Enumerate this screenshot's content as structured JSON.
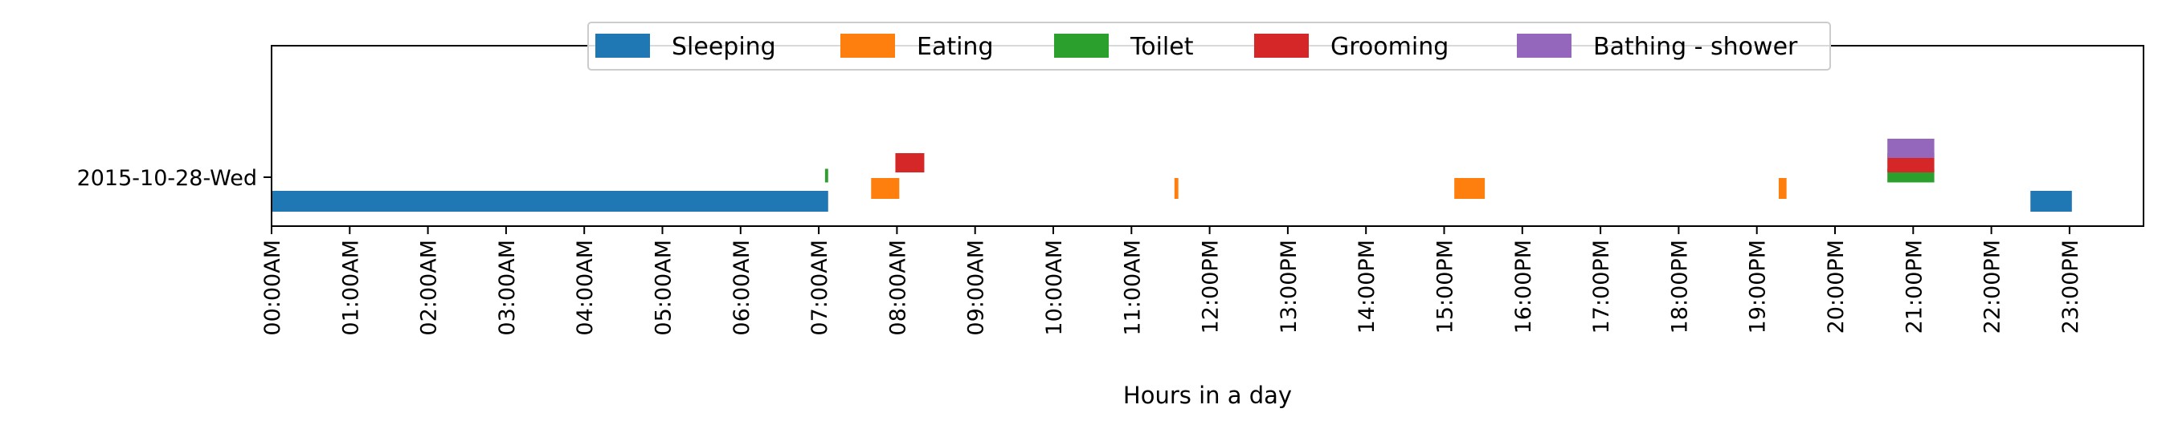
{
  "chart_data": {
    "type": "timeline",
    "xlabel": "Hours in a day",
    "ylabel": "",
    "xlim_hours": [
      0,
      24
    ],
    "x_ticks": [
      "00:00AM",
      "01:00AM",
      "02:00AM",
      "03:00AM",
      "04:00AM",
      "05:00AM",
      "06:00AM",
      "07:00AM",
      "08:00AM",
      "09:00AM",
      "10:00AM",
      "11:00AM",
      "12:00PM",
      "13:00PM",
      "14:00PM",
      "15:00PM",
      "16:00PM",
      "17:00PM",
      "18:00PM",
      "19:00PM",
      "20:00PM",
      "21:00PM",
      "22:00PM",
      "23:00PM"
    ],
    "y_categories": [
      "2015-10-28-Wed"
    ],
    "grid": false,
    "legend_position": "top-center",
    "series": [
      {
        "name": "Sleeping",
        "color": "#1f77b4",
        "lane": 0,
        "intervals": [
          [
            0.0,
            7.12
          ],
          [
            22.5,
            23.03
          ]
        ]
      },
      {
        "name": "Eating",
        "color": "#ff7f0e",
        "lane": 1,
        "intervals": [
          [
            7.67,
            8.03
          ],
          [
            11.55,
            11.6
          ],
          [
            15.13,
            15.52
          ],
          [
            19.28,
            19.38
          ]
        ]
      },
      {
        "name": "Toilet",
        "color": "#2ca02c",
        "lane": 2,
        "intervals": [
          [
            7.08,
            7.12
          ],
          [
            20.67,
            21.27
          ]
        ]
      },
      {
        "name": "Grooming",
        "color": "#d62728",
        "lane": 3,
        "intervals": [
          [
            7.98,
            8.35
          ],
          [
            20.67,
            21.27
          ]
        ]
      },
      {
        "name": "Bathing - shower",
        "color": "#9467bd",
        "lane": 4,
        "intervals": [
          [
            20.67,
            21.27
          ]
        ]
      }
    ]
  }
}
